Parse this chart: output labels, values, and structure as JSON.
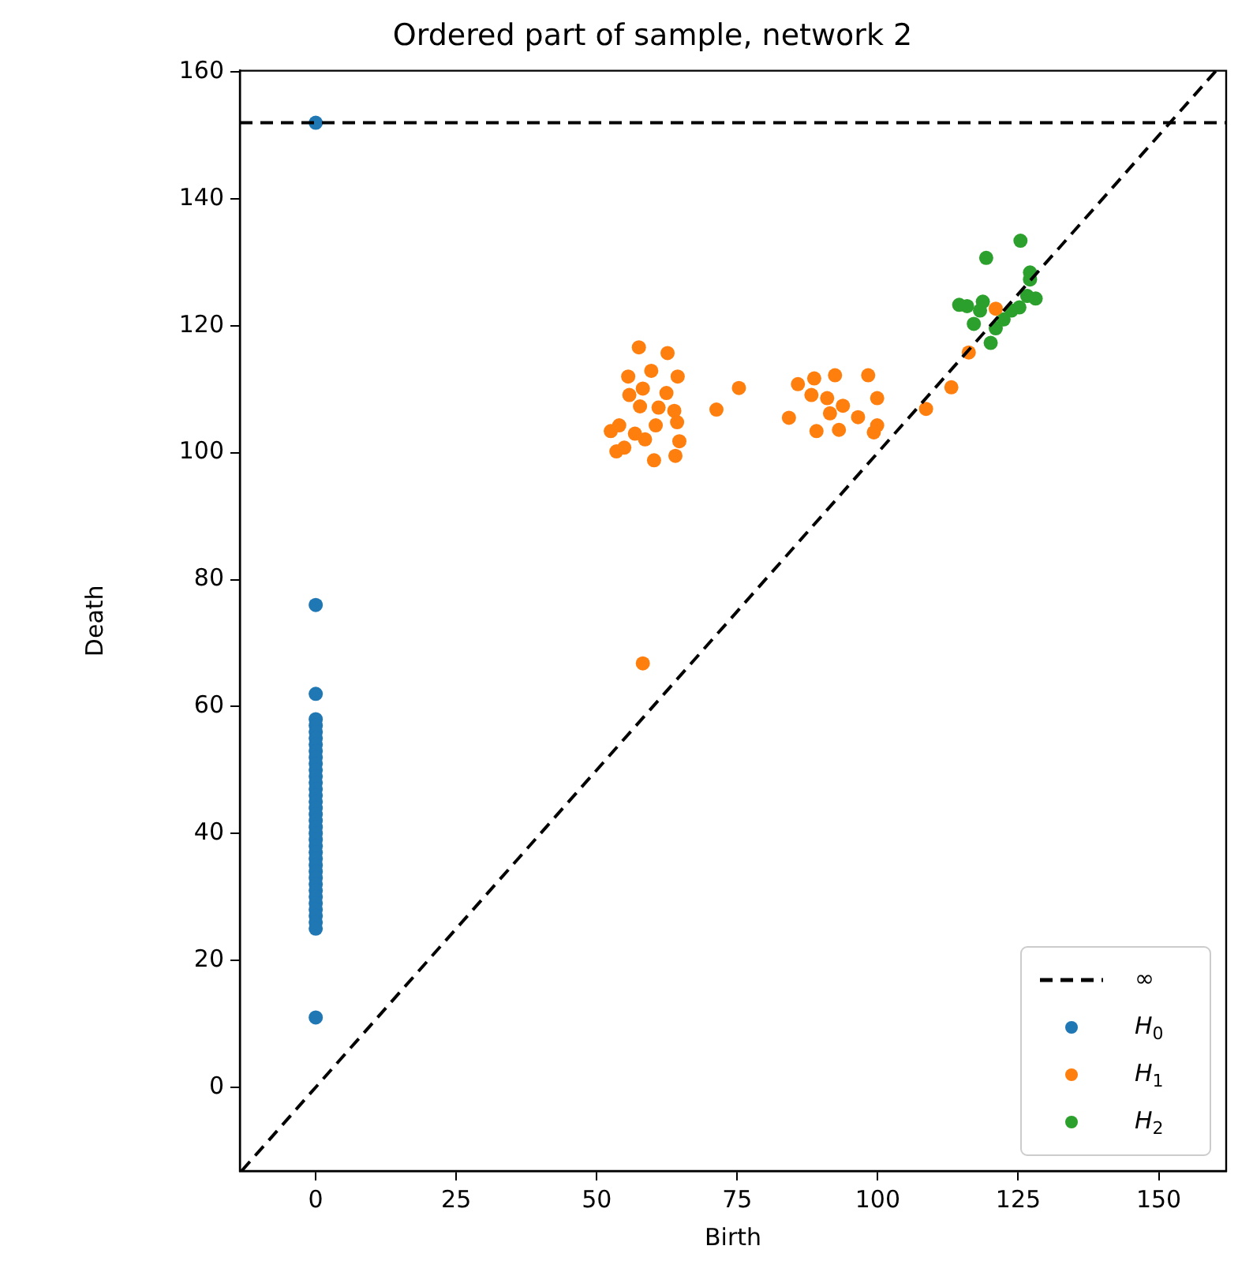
{
  "chart_data": {
    "type": "scatter",
    "title": "Ordered part of sample, network 2",
    "xlabel": "Birth",
    "ylabel": "Death",
    "xlim": [
      -13.5,
      162
    ],
    "ylim": [
      -13.2,
      160.2
    ],
    "xticks": [
      0,
      25,
      50,
      75,
      100,
      125,
      150
    ],
    "yticks": [
      0,
      20,
      40,
      60,
      80,
      100,
      120,
      140,
      160
    ],
    "grid": false,
    "legend": "bottom right",
    "marker": "circle",
    "series": [
      {
        "type": "line",
        "name": "∞",
        "color": "#000000",
        "line_style": "dashed",
        "marker": "none",
        "x": [
          -13.5,
          162
        ],
        "values": [
          152,
          152
        ]
      },
      {
        "type": "line",
        "color": "#000000",
        "line_style": "dashed",
        "marker": "none",
        "x": [
          -13.2,
          160.2
        ],
        "values": [
          -13.2,
          160.2
        ]
      },
      {
        "name": "H$_{0}$",
        "color": "#1f77b4",
        "x": [
          0,
          0,
          0,
          0,
          0,
          0,
          0,
          0,
          0,
          0,
          0,
          0,
          0,
          0,
          0,
          0,
          0,
          0,
          0,
          0,
          0,
          0,
          0,
          0,
          0,
          0,
          0,
          0,
          0,
          0,
          0,
          0,
          0,
          0,
          0,
          0,
          0,
          0
        ],
        "values": [
          152,
          76,
          62,
          58,
          57,
          56,
          55,
          54,
          53,
          52,
          51,
          50,
          49,
          48,
          47,
          46,
          45,
          44,
          43,
          42,
          41,
          40,
          39,
          38,
          37,
          36,
          35,
          34,
          33,
          32,
          31,
          30,
          29,
          28,
          27,
          26,
          25,
          11
        ]
      },
      {
        "name": "H$_{1}$",
        "color": "#ff7f0e",
        "x": [
          57.5,
          62.6,
          55.6,
          59.7,
          64.4,
          75.3,
          71.3,
          55.8,
          58.2,
          62.4,
          57.7,
          61.0,
          63.8,
          60.5,
          64.3,
          52.5,
          54.0,
          56.8,
          58.6,
          53.5,
          54.9,
          60.2,
          64.0,
          64.7,
          85.8,
          88.7,
          92.4,
          98.3,
          88.2,
          91.0,
          93.8,
          99.9,
          84.2,
          91.5,
          96.5,
          89.1,
          93.1,
          99.9,
          99.3,
          108.6,
          113.1,
          58.2,
          121.0,
          116.2
        ],
        "values": [
          116.6,
          115.7,
          112.0,
          112.9,
          112.0,
          110.2,
          106.8,
          109.1,
          110.1,
          109.4,
          107.3,
          107.1,
          106.6,
          104.3,
          104.8,
          103.4,
          104.3,
          103.0,
          102.1,
          100.2,
          100.8,
          98.8,
          99.5,
          101.8,
          110.8,
          111.7,
          112.2,
          112.2,
          109.1,
          108.6,
          107.4,
          108.6,
          105.5,
          106.2,
          105.6,
          103.4,
          103.6,
          104.3,
          103.2,
          106.9,
          110.3,
          66.8,
          122.7,
          115.8
        ]
      },
      {
        "name": "H$_{2}$",
        "color": "#2ca02c",
        "x": [
          125.4,
          119.3,
          127.1,
          127.1,
          114.5,
          115.9,
          118.7,
          118.2,
          117.1,
          123.8,
          122.4,
          126.6,
          128.1,
          121.0,
          120.1,
          125.2
        ],
        "values": [
          133.4,
          130.7,
          128.4,
          127.3,
          123.3,
          123.1,
          123.8,
          122.4,
          120.3,
          122.4,
          121.0,
          124.7,
          124.3,
          119.6,
          117.3,
          122.9
        ]
      }
    ]
  }
}
